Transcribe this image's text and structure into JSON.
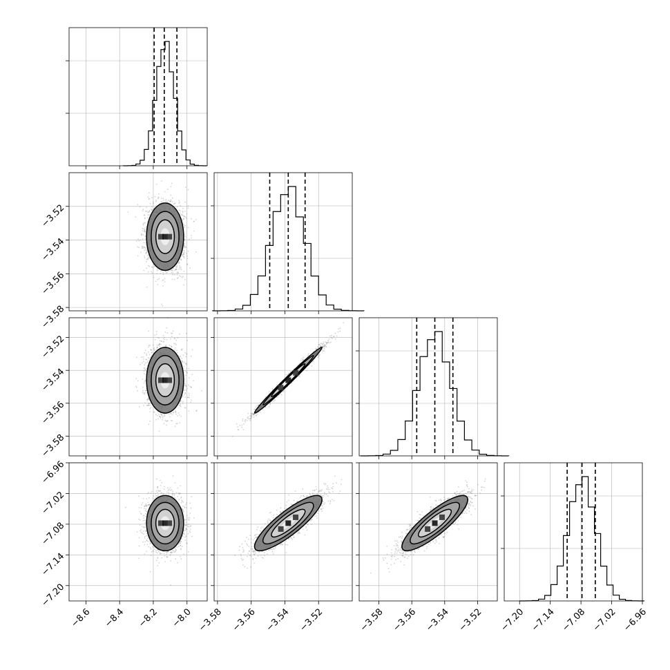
{
  "chart_data": {
    "type": "corner",
    "n_params": 4,
    "grid": true,
    "colors": {
      "line": "#000000",
      "grid": "#b0b0b0",
      "scatter": "#808080",
      "background": "#ffffff"
    },
    "params": [
      {
        "range": [
          -8.7,
          -7.88
        ],
        "ticks": [
          -8.6,
          -8.4,
          -8.2,
          -8.0
        ],
        "tick_labels": [
          "−8.6",
          "−8.4",
          "−8.2",
          "−8.0"
        ],
        "mean": -8.13,
        "std": 0.055,
        "quantiles": [
          -8.195,
          -8.135,
          -8.06
        ]
      },
      {
        "range": [
          -3.582,
          -3.5
        ],
        "ticks": [
          -3.58,
          -3.56,
          -3.54,
          -3.52
        ],
        "tick_labels": [
          "−3.58",
          "−3.56",
          "−3.54",
          "−3.52"
        ],
        "mean": -3.538,
        "std": 0.01,
        "quantiles": [
          -3.549,
          -3.538,
          -3.528
        ]
      },
      {
        "range": [
          -3.592,
          -3.508
        ],
        "ticks": [
          -3.58,
          -3.56,
          -3.54,
          -3.52
        ],
        "tick_labels": [
          "−3.58",
          "−3.56",
          "−3.54",
          "−3.52"
        ],
        "mean": -3.546,
        "std": 0.01,
        "quantiles": [
          -3.557,
          -3.546,
          -3.535
        ]
      },
      {
        "range": [
          -7.23,
          -6.96
        ],
        "ticks": [
          -7.2,
          -7.14,
          -7.08,
          -7.02,
          -6.96
        ],
        "tick_labels": [
          "−7.20",
          "−7.14",
          "−7.08",
          "−7.02",
          "−6.96"
        ],
        "mean": -7.078,
        "std": 0.027,
        "quantiles": [
          -7.107,
          -7.078,
          -7.052
        ]
      }
    ],
    "correlations": [
      {
        "row": 1,
        "col": 0,
        "rho": 0.0
      },
      {
        "row": 2,
        "col": 0,
        "rho": 0.0
      },
      {
        "row": 2,
        "col": 1,
        "rho": 0.99
      },
      {
        "row": 3,
        "col": 0,
        "rho": 0.0
      },
      {
        "row": 3,
        "col": 1,
        "rho": 0.85
      },
      {
        "row": 3,
        "col": 2,
        "rho": 0.85
      }
    ],
    "histogram_bins": 20,
    "scatter_points_per_panel": 2200,
    "contour_levels_sigma": [
      0.5,
      1.0,
      1.5,
      2.0
    ]
  }
}
